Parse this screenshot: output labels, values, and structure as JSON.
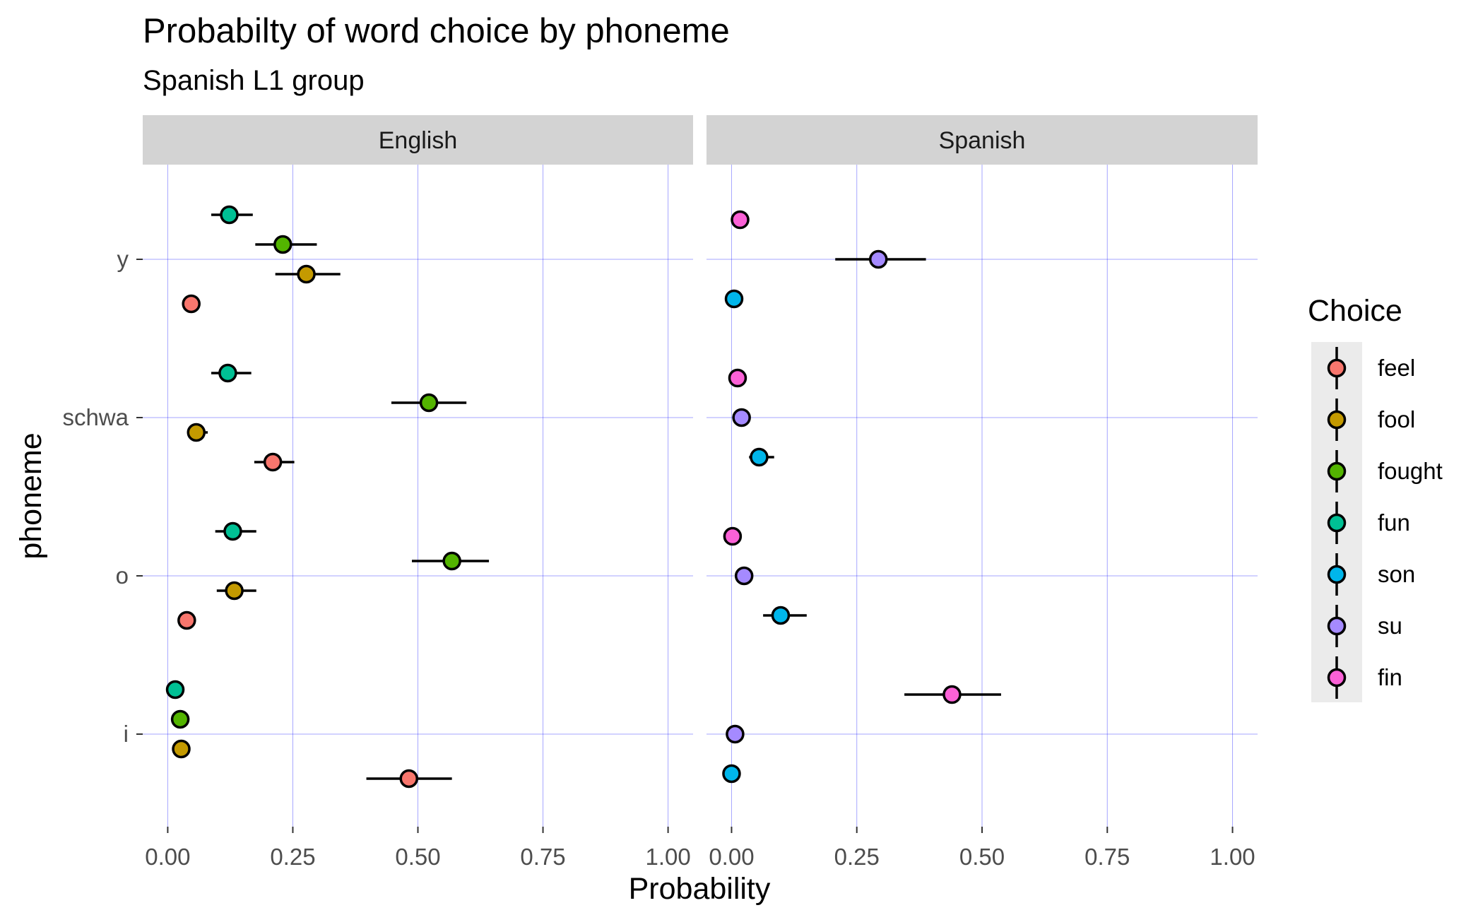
{
  "chart_data": {
    "type": "scatter",
    "title": "Probabilty of word choice by phoneme",
    "subtitle": "Spanish L1 group",
    "xlabel": "Probability",
    "ylabel": "phoneme",
    "xlim": [
      -0.05,
      1.05
    ],
    "x_ticks": [
      "0.00",
      "0.25",
      "0.50",
      "0.75",
      "1.00"
    ],
    "x_tick_values": [
      0,
      0.25,
      0.5,
      0.75,
      1.0
    ],
    "y_categories": [
      "y",
      "schwa",
      "o",
      "i"
    ],
    "panels": [
      "English",
      "Spanish"
    ],
    "grid": true,
    "legend": {
      "title": "Choice",
      "position": "right",
      "entries": [
        {
          "label": "feel",
          "color": "#F8766D"
        },
        {
          "label": "fool",
          "color": "#C49A00"
        },
        {
          "label": "fought",
          "color": "#53B400"
        },
        {
          "label": "fun",
          "color": "#00C094"
        },
        {
          "label": "son",
          "color": "#00B6EB"
        },
        {
          "label": "su",
          "color": "#A58AFF"
        },
        {
          "label": "fin",
          "color": "#FB61D7"
        }
      ]
    },
    "points": [
      {
        "panel": "English",
        "phoneme": "y",
        "choice": "fun",
        "offset": 0.375,
        "x": 0.123,
        "lo": 0.087,
        "hi": 0.17
      },
      {
        "panel": "English",
        "phoneme": "y",
        "choice": "fought",
        "offset": 0.125,
        "x": 0.23,
        "lo": 0.175,
        "hi": 0.298
      },
      {
        "panel": "English",
        "phoneme": "y",
        "choice": "fool",
        "offset": -0.125,
        "x": 0.277,
        "lo": 0.215,
        "hi": 0.345
      },
      {
        "panel": "English",
        "phoneme": "y",
        "choice": "feel",
        "offset": -0.375,
        "x": 0.047,
        "lo": 0.047,
        "hi": 0.047
      },
      {
        "panel": "English",
        "phoneme": "schwa",
        "choice": "fun",
        "offset": 0.375,
        "x": 0.12,
        "lo": 0.087,
        "hi": 0.167
      },
      {
        "panel": "English",
        "phoneme": "schwa",
        "choice": "fought",
        "offset": 0.125,
        "x": 0.522,
        "lo": 0.447,
        "hi": 0.597
      },
      {
        "panel": "English",
        "phoneme": "schwa",
        "choice": "fool",
        "offset": -0.125,
        "x": 0.057,
        "lo": 0.04,
        "hi": 0.08
      },
      {
        "panel": "English",
        "phoneme": "schwa",
        "choice": "feel",
        "offset": -0.375,
        "x": 0.21,
        "lo": 0.173,
        "hi": 0.253
      },
      {
        "panel": "English",
        "phoneme": "o",
        "choice": "fun",
        "offset": 0.375,
        "x": 0.13,
        "lo": 0.095,
        "hi": 0.177
      },
      {
        "panel": "English",
        "phoneme": "o",
        "choice": "fought",
        "offset": 0.125,
        "x": 0.568,
        "lo": 0.488,
        "hi": 0.642
      },
      {
        "panel": "English",
        "phoneme": "o",
        "choice": "fool",
        "offset": -0.125,
        "x": 0.133,
        "lo": 0.098,
        "hi": 0.177
      },
      {
        "panel": "English",
        "phoneme": "o",
        "choice": "feel",
        "offset": -0.375,
        "x": 0.038,
        "lo": 0.038,
        "hi": 0.038
      },
      {
        "panel": "English",
        "phoneme": "i",
        "choice": "fun",
        "offset": 0.375,
        "x": 0.015,
        "lo": 0.015,
        "hi": 0.015
      },
      {
        "panel": "English",
        "phoneme": "i",
        "choice": "fought",
        "offset": 0.125,
        "x": 0.025,
        "lo": 0.025,
        "hi": 0.025
      },
      {
        "panel": "English",
        "phoneme": "i",
        "choice": "fool",
        "offset": -0.125,
        "x": 0.027,
        "lo": 0.027,
        "hi": 0.027
      },
      {
        "panel": "English",
        "phoneme": "i",
        "choice": "feel",
        "offset": -0.375,
        "x": 0.482,
        "lo": 0.397,
        "hi": 0.568
      },
      {
        "panel": "Spanish",
        "phoneme": "y",
        "choice": "fin",
        "offset": 0.333,
        "x": 0.017,
        "lo": 0.017,
        "hi": 0.017
      },
      {
        "panel": "Spanish",
        "phoneme": "y",
        "choice": "su",
        "offset": 0.0,
        "x": 0.293,
        "lo": 0.207,
        "hi": 0.388
      },
      {
        "panel": "Spanish",
        "phoneme": "y",
        "choice": "son",
        "offset": -0.333,
        "x": 0.005,
        "lo": 0.005,
        "hi": 0.005
      },
      {
        "panel": "Spanish",
        "phoneme": "schwa",
        "choice": "fin",
        "offset": 0.333,
        "x": 0.012,
        "lo": 0.012,
        "hi": 0.012
      },
      {
        "panel": "Spanish",
        "phoneme": "schwa",
        "choice": "su",
        "offset": 0.0,
        "x": 0.02,
        "lo": 0.02,
        "hi": 0.02
      },
      {
        "panel": "Spanish",
        "phoneme": "schwa",
        "choice": "son",
        "offset": -0.333,
        "x": 0.055,
        "lo": 0.035,
        "hi": 0.085
      },
      {
        "panel": "Spanish",
        "phoneme": "o",
        "choice": "fin",
        "offset": 0.333,
        "x": 0.002,
        "lo": 0.002,
        "hi": 0.002
      },
      {
        "panel": "Spanish",
        "phoneme": "o",
        "choice": "su",
        "offset": 0.0,
        "x": 0.025,
        "lo": 0.025,
        "hi": 0.025
      },
      {
        "panel": "Spanish",
        "phoneme": "o",
        "choice": "son",
        "offset": -0.333,
        "x": 0.098,
        "lo": 0.063,
        "hi": 0.15
      },
      {
        "panel": "Spanish",
        "phoneme": "i",
        "choice": "fin",
        "offset": 0.333,
        "x": 0.44,
        "lo": 0.345,
        "hi": 0.538
      },
      {
        "panel": "Spanish",
        "phoneme": "i",
        "choice": "su",
        "offset": 0.0,
        "x": 0.007,
        "lo": 0.007,
        "hi": 0.007
      },
      {
        "panel": "Spanish",
        "phoneme": "i",
        "choice": "son",
        "offset": -0.333,
        "x": 0.0,
        "lo": 0.0,
        "hi": 0.0
      }
    ]
  }
}
